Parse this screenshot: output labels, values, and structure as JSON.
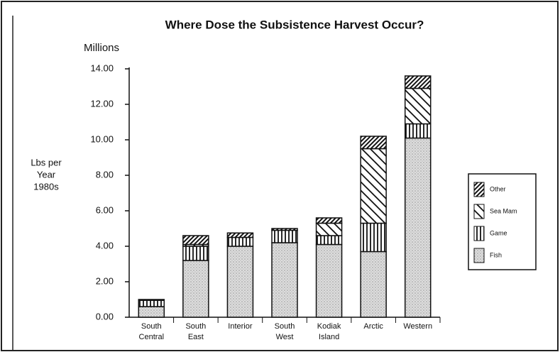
{
  "chart_data": {
    "type": "stacked_bar",
    "title": "Where Dose the Subsistence Harvest Occur?",
    "unit_label": "Millions",
    "ylabel": [
      "Lbs per",
      "Year",
      "1980s"
    ],
    "categories": [
      "South Central",
      "South East",
      "Interior",
      "South West",
      "Kodiak Island",
      "Arctic",
      "Western"
    ],
    "series": [
      {
        "name": "Fish",
        "pattern": "dots",
        "values": [
          0.6,
          3.2,
          4.0,
          4.2,
          4.1,
          3.7,
          10.1
        ]
      },
      {
        "name": "Game",
        "pattern": "vertical",
        "values": [
          0.35,
          0.8,
          0.5,
          0.7,
          0.5,
          1.6,
          0.8
        ]
      },
      {
        "name": "Sea Mam",
        "pattern": "backslash",
        "values": [
          0,
          0.1,
          0,
          0,
          0.7,
          4.2,
          2.0
        ]
      },
      {
        "name": "Other",
        "pattern": "slash",
        "values": [
          0.05,
          0.5,
          0.25,
          0.1,
          0.3,
          0.7,
          0.7
        ]
      }
    ],
    "ylim": [
      0,
      14
    ],
    "yticks": [
      {
        "value": 0,
        "label": "0.00"
      },
      {
        "value": 2,
        "label": "2.00"
      },
      {
        "value": 4,
        "label": "4.00"
      },
      {
        "value": 6,
        "label": "6.00"
      },
      {
        "value": 8,
        "label": "8.00"
      },
      {
        "value": 10,
        "label": "10.00"
      },
      {
        "value": 12,
        "label": "12.00"
      },
      {
        "value": 14,
        "label": "14.00"
      }
    ],
    "legend": "right"
  }
}
